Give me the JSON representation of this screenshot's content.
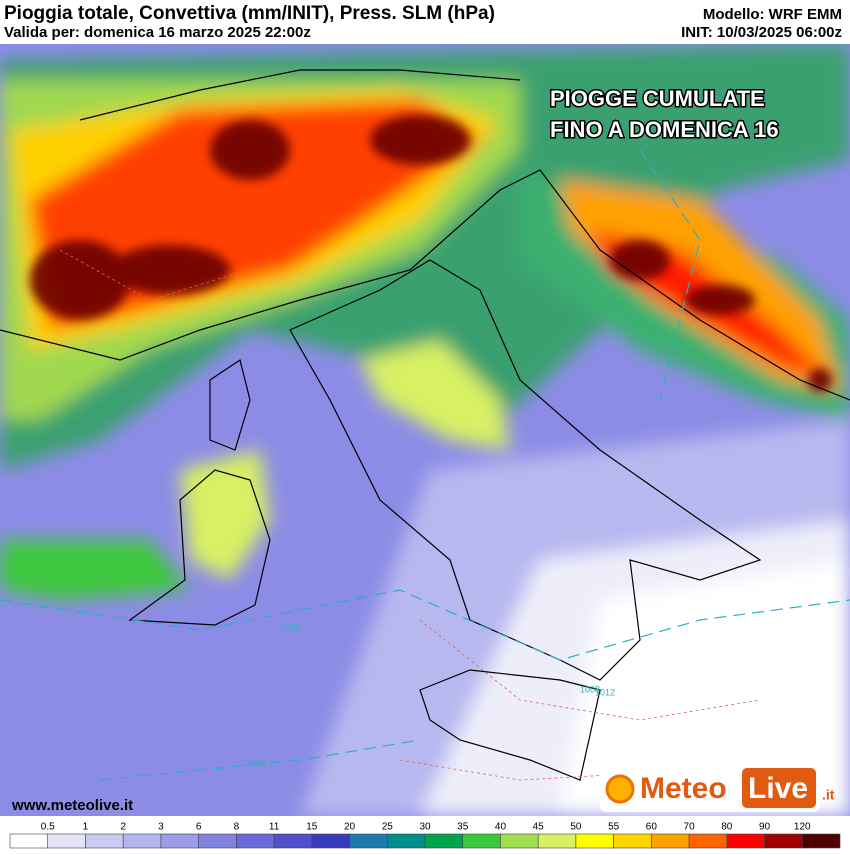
{
  "header": {
    "title": "Pioggia totale, Convettiva (mm/INIT), Press. SLM (hPa)",
    "valid": "Valida per: domenica 16 marzo 2025 22:00z",
    "model": "Modello: WRF EMM",
    "init": "INIT: 10/03/2025 06:00z"
  },
  "overlay_text": [
    "PIOGGE CUMULATE",
    "FINO A DOMENICA 16"
  ],
  "isobar_labels": [
    "1008",
    "1012",
    "1012",
    "1016"
  ],
  "website": "www.meteolive.it",
  "logo": {
    "part1": "Meteo",
    "part2": "Live",
    "suffix": ".it"
  },
  "color_scale": {
    "labels": [
      0.5,
      1,
      2,
      3,
      6,
      8,
      11,
      15,
      20,
      25,
      30,
      35,
      40,
      45,
      50,
      55,
      60,
      70,
      80,
      90,
      120
    ],
    "colors": [
      "#ffffff",
      "#e4e4f6",
      "#cacaf2",
      "#b4b4ee",
      "#9c9cea",
      "#8282e0",
      "#6a6ad8",
      "#5050cc",
      "#3a3abe",
      "#1e7aae",
      "#00908c",
      "#00a44c",
      "#3cc83c",
      "#a0e050",
      "#d8f064",
      "#ffff00",
      "#ffd400",
      "#ffa000",
      "#ff6400",
      "#ff0000",
      "#a00000",
      "#500000"
    ]
  }
}
